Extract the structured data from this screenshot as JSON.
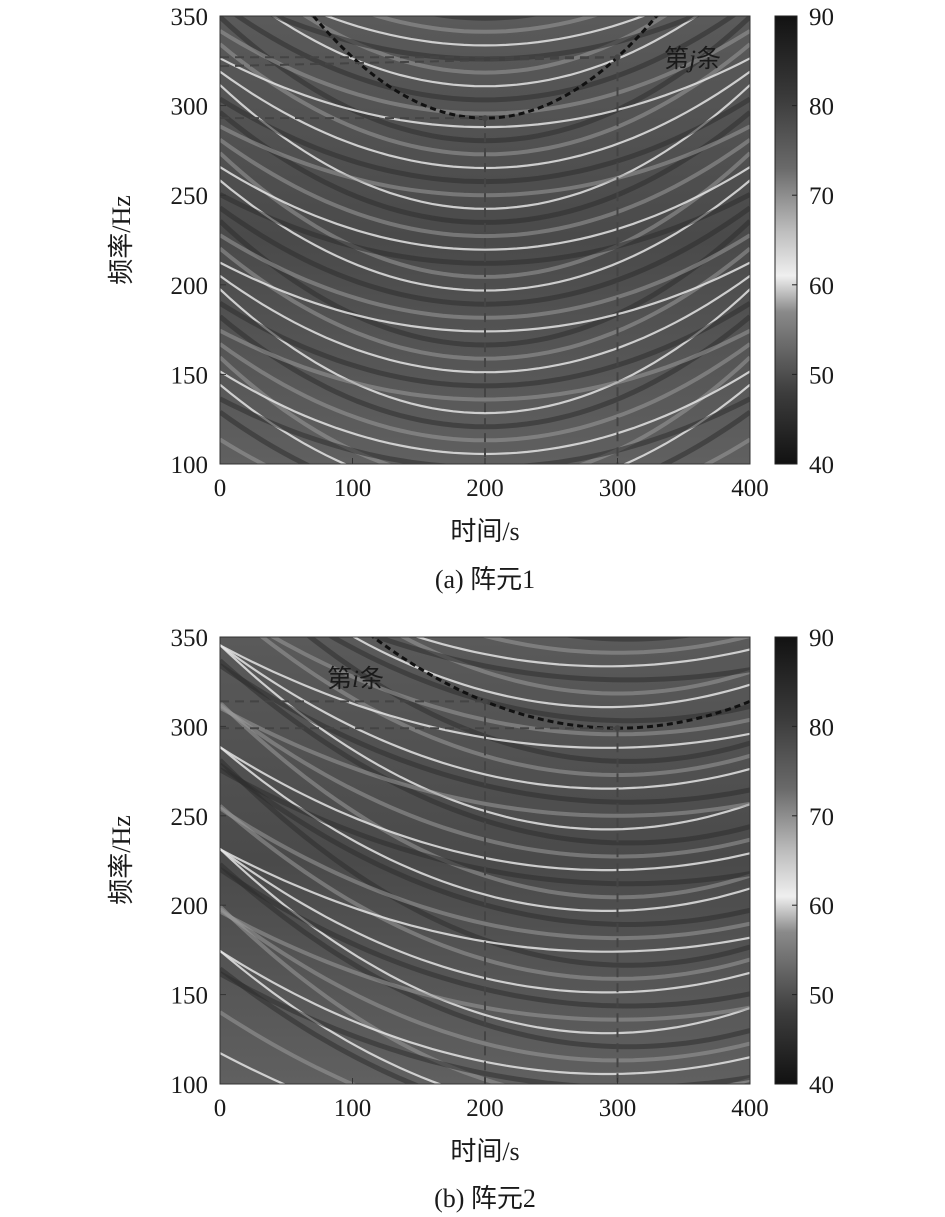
{
  "chart_data": [
    {
      "type": "heatmap",
      "caption": "(a) 阵元1",
      "xlabel": "时间/s",
      "ylabel": "频率/Hz",
      "xlim": [
        0,
        400
      ],
      "ylim": [
        100,
        350
      ],
      "xticks": [
        "0",
        "100",
        "200",
        "300",
        "400"
      ],
      "yticks": [
        "100",
        "150",
        "200",
        "250",
        "300",
        "350"
      ],
      "colorbar": {
        "min": 40,
        "max": 90,
        "ticks": [
          "40",
          "50",
          "60",
          "70",
          "80",
          "90"
        ]
      },
      "annotation": {
        "prefix": "第",
        "index": "j",
        "suffix": "条"
      },
      "marked_curve": {
        "vertex_time": 200,
        "vertex_freq": 293
      },
      "guides": [
        {
          "time": 200,
          "freq": 293
        },
        {
          "time": 300,
          "freq": 327
        }
      ],
      "extra_hline_freq": 322
    },
    {
      "type": "heatmap",
      "caption": "(b) 阵元2",
      "xlabel": "时间/s",
      "ylabel": "频率/Hz",
      "xlim": [
        0,
        400
      ],
      "ylim": [
        100,
        350
      ],
      "xticks": [
        "0",
        "100",
        "200",
        "300",
        "400"
      ],
      "yticks": [
        "100",
        "150",
        "200",
        "250",
        "300",
        "350"
      ],
      "colorbar": {
        "min": 40,
        "max": 90,
        "ticks": [
          "40",
          "50",
          "60",
          "70",
          "80",
          "90"
        ]
      },
      "annotation": {
        "prefix": "第",
        "index": "i",
        "suffix": "条"
      },
      "marked_curve": {
        "vertex_time": 300,
        "vertex_freq": 299
      },
      "guides": [
        {
          "time": 200,
          "freq": 314
        },
        {
          "time": 300,
          "freq": 299
        }
      ],
      "extra_hline_freq": null
    }
  ]
}
